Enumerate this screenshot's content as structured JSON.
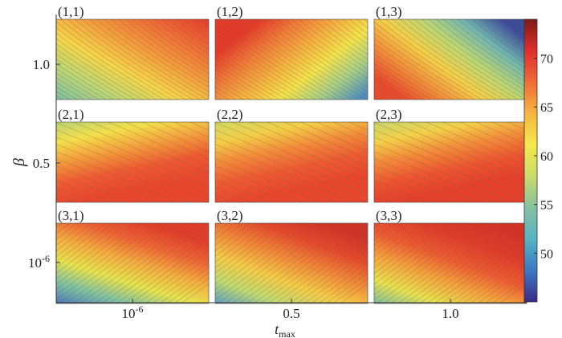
{
  "chart_data": {
    "type": "heatmap",
    "title": "",
    "xlabel": {
      "main": "t",
      "sub": "max"
    },
    "ylabel": "β",
    "grid_rows": 3,
    "grid_cols": 3,
    "panels": [
      {
        "label": "(1,1)",
        "row": 1,
        "col": 1
      },
      {
        "label": "(1,2)",
        "row": 1,
        "col": 2
      },
      {
        "label": "(1,3)",
        "row": 1,
        "col": 3
      },
      {
        "label": "(2,1)",
        "row": 2,
        "col": 1
      },
      {
        "label": "(2,2)",
        "row": 2,
        "col": 2
      },
      {
        "label": "(2,3)",
        "row": 2,
        "col": 3
      },
      {
        "label": "(3,1)",
        "row": 3,
        "col": 1
      },
      {
        "label": "(3,2)",
        "row": 3,
        "col": 2
      },
      {
        "label": "(3,3)",
        "row": 3,
        "col": 3
      }
    ],
    "x_ticks": [
      {
        "base": "10",
        "exp": "-6"
      },
      {
        "base": "0.5",
        "exp": ""
      },
      {
        "base": "1.0",
        "exp": ""
      }
    ],
    "y_ticks": [
      {
        "base": "1.0",
        "exp": ""
      },
      {
        "base": "0.5",
        "exp": ""
      },
      {
        "base": "10",
        "exp": "-6"
      }
    ],
    "colorbar": {
      "range": [
        45,
        74
      ],
      "ticks": [
        50,
        55,
        60,
        65,
        70
      ],
      "colors": [
        "#3a2a86",
        "#3c78c3",
        "#56b3c2",
        "#86c0a0",
        "#c9dc6c",
        "#f4e94a",
        "#f7b540",
        "#ef6b39",
        "#dd2f2c",
        "#7e1a14"
      ]
    },
    "grid": false
  }
}
